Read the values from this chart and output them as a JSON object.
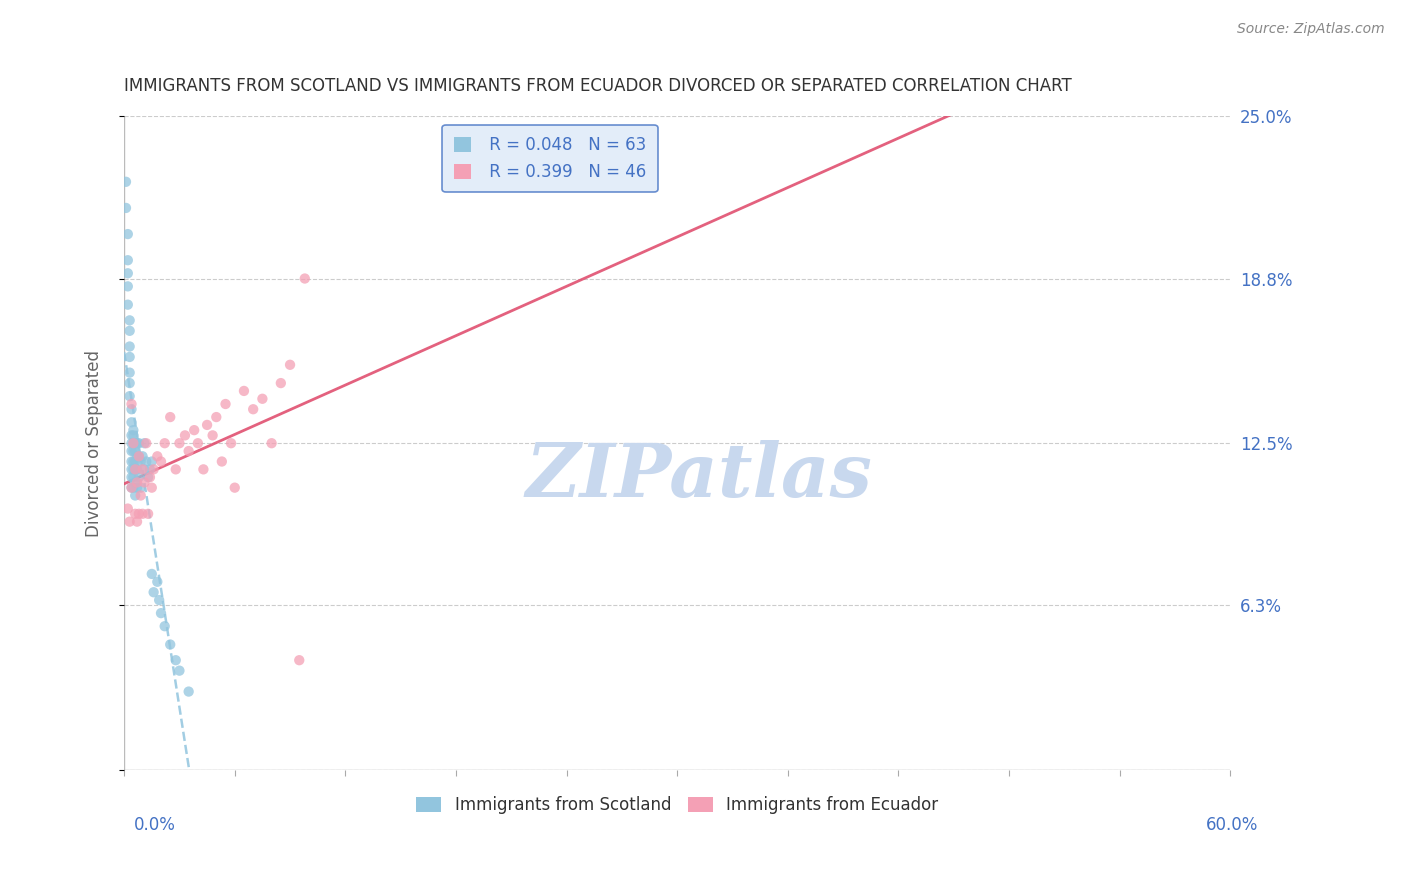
{
  "title": "IMMIGRANTS FROM SCOTLAND VS IMMIGRANTS FROM ECUADOR DIVORCED OR SEPARATED CORRELATION CHART",
  "source": "Source: ZipAtlas.com",
  "ylabel": "Divorced or Separated",
  "series": [
    {
      "name": "Immigrants from Scotland",
      "color": "#92c5de",
      "R": 0.048,
      "N": 63,
      "line_style": "dashed",
      "line_color": "#92c5de",
      "x": [
        0.001,
        0.001,
        0.002,
        0.002,
        0.002,
        0.002,
        0.002,
        0.003,
        0.003,
        0.003,
        0.003,
        0.003,
        0.003,
        0.003,
        0.004,
        0.004,
        0.004,
        0.004,
        0.004,
        0.004,
        0.004,
        0.004,
        0.004,
        0.005,
        0.005,
        0.005,
        0.005,
        0.005,
        0.005,
        0.005,
        0.005,
        0.006,
        0.006,
        0.006,
        0.006,
        0.006,
        0.006,
        0.007,
        0.007,
        0.007,
        0.007,
        0.008,
        0.008,
        0.008,
        0.009,
        0.009,
        0.01,
        0.011,
        0.011,
        0.012,
        0.013,
        0.014,
        0.015,
        0.015,
        0.016,
        0.018,
        0.019,
        0.02,
        0.022,
        0.025,
        0.028,
        0.03,
        0.035
      ],
      "y": [
        0.225,
        0.215,
        0.205,
        0.195,
        0.19,
        0.185,
        0.178,
        0.172,
        0.168,
        0.162,
        0.158,
        0.152,
        0.148,
        0.143,
        0.138,
        0.133,
        0.128,
        0.125,
        0.122,
        0.118,
        0.115,
        0.112,
        0.108,
        0.13,
        0.128,
        0.125,
        0.122,
        0.118,
        0.115,
        0.112,
        0.108,
        0.125,
        0.122,
        0.118,
        0.115,
        0.11,
        0.105,
        0.125,
        0.12,
        0.115,
        0.108,
        0.125,
        0.12,
        0.112,
        0.118,
        0.108,
        0.12,
        0.125,
        0.115,
        0.118,
        0.112,
        0.115,
        0.118,
        0.075,
        0.068,
        0.072,
        0.065,
        0.06,
        0.055,
        0.048,
        0.042,
        0.038,
        0.03
      ]
    },
    {
      "name": "Immigrants from Ecuador",
      "color": "#f4a0b5",
      "R": 0.399,
      "N": 46,
      "line_style": "solid",
      "line_color": "#e05070",
      "x": [
        0.002,
        0.003,
        0.004,
        0.004,
        0.005,
        0.006,
        0.006,
        0.007,
        0.007,
        0.008,
        0.008,
        0.009,
        0.01,
        0.01,
        0.011,
        0.012,
        0.013,
        0.014,
        0.015,
        0.016,
        0.018,
        0.02,
        0.022,
        0.025,
        0.028,
        0.03,
        0.033,
        0.035,
        0.038,
        0.04,
        0.043,
        0.045,
        0.048,
        0.05,
        0.053,
        0.055,
        0.058,
        0.06,
        0.065,
        0.07,
        0.075,
        0.08,
        0.085,
        0.09,
        0.095,
        0.098
      ],
      "y": [
        0.1,
        0.095,
        0.14,
        0.108,
        0.125,
        0.115,
        0.098,
        0.11,
        0.095,
        0.12,
        0.098,
        0.105,
        0.115,
        0.098,
        0.11,
        0.125,
        0.098,
        0.112,
        0.108,
        0.115,
        0.12,
        0.118,
        0.125,
        0.135,
        0.115,
        0.125,
        0.128,
        0.122,
        0.13,
        0.125,
        0.115,
        0.132,
        0.128,
        0.135,
        0.118,
        0.14,
        0.125,
        0.108,
        0.145,
        0.138,
        0.142,
        0.125,
        0.148,
        0.155,
        0.042,
        0.188
      ]
    }
  ],
  "xlim": [
    0.0,
    0.6
  ],
  "ylim": [
    0.0,
    0.25
  ],
  "xtick_positions": [
    0.0,
    0.06,
    0.12,
    0.18,
    0.24,
    0.3,
    0.36,
    0.42,
    0.48,
    0.54,
    0.6
  ],
  "ytick_positions": [
    0.0,
    0.063,
    0.125,
    0.188,
    0.25
  ],
  "ytick_labels": [
    "",
    "6.3%",
    "12.5%",
    "18.8%",
    "25.0%"
  ],
  "grid_color": "#cccccc",
  "title_color": "#333333",
  "axis_label_color": "#666666",
  "tick_label_color": "#4472c4",
  "legend_box_facecolor": "#dce9f8",
  "legend_box_edgecolor": "#4472c4",
  "r_n_color": "#4472c4",
  "watermark_text": "ZIPatlas",
  "watermark_color": "#c8d8ee"
}
